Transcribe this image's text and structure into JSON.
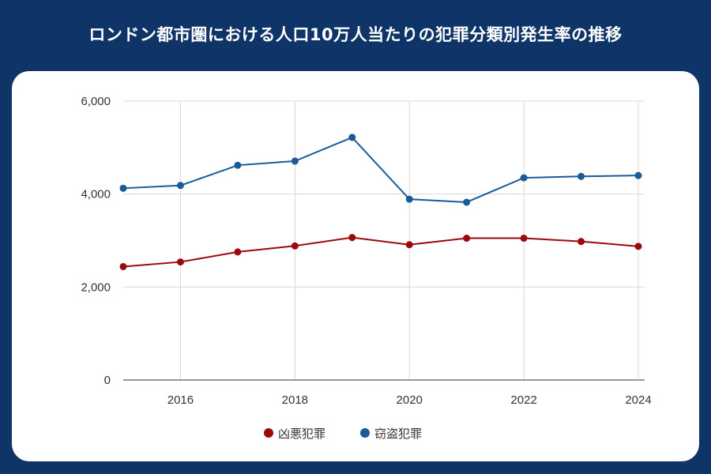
{
  "title": "ロンドン都市圏における人口10万人当たりの犯罪分類別発生率の推移",
  "chart_data": {
    "type": "line",
    "title": "ロンドン都市圏における人口10万人当たりの犯罪分類別発生率の推移",
    "xlabel": "",
    "ylabel": "",
    "x": [
      2015,
      2016,
      2017,
      2018,
      2019,
      2020,
      2021,
      2022,
      2023,
      2024
    ],
    "x_ticks": [
      "2016",
      "2018",
      "2020",
      "2022",
      "2024"
    ],
    "y_ticks": [
      "0",
      "2,000",
      "4,000",
      "6,000"
    ],
    "ylim": [
      0,
      6000
    ],
    "xlim": [
      2015,
      2024
    ],
    "grid": true,
    "legend_position": "bottom",
    "series": [
      {
        "name": "凶悪犯罪",
        "color": "#9b0a0a",
        "values": [
          2440,
          2540,
          2755,
          2885,
          3065,
          2910,
          3050,
          3050,
          2980,
          2875
        ]
      },
      {
        "name": "窃盗犯罪",
        "color": "#1a5a96",
        "values": [
          4125,
          4185,
          4620,
          4710,
          5220,
          3890,
          3825,
          4350,
          4380,
          4400
        ]
      }
    ]
  }
}
